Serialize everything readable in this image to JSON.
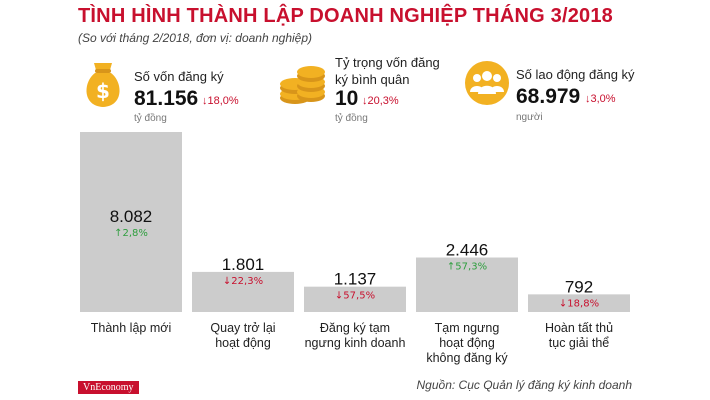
{
  "title": "TÌNH HÌNH THÀNH LẬP DOANH NGHIỆP THÁNG 3/2018",
  "subtitle": "(So với tháng 2/2018, đơn vị: doanh nghiệp)",
  "kpis": [
    {
      "label": "Số vốn đăng ký",
      "value": "81.156",
      "change": "18,0%",
      "direction": "down",
      "unit": "tỷ đồng",
      "icon": "money-bag-icon"
    },
    {
      "label1": "Tỷ trọng vốn đăng",
      "label2": "ký bình quân",
      "value": "10",
      "change": "20,3%",
      "direction": "down",
      "unit": "tỷ đồng",
      "icon": "coin-stack-icon"
    },
    {
      "label": "Số lao động đăng ký",
      "value": "68.979",
      "change": "3,0%",
      "direction": "down",
      "unit": "người",
      "icon": "people-icon"
    }
  ],
  "colors": {
    "bar": "#cccccc",
    "up": "#2e9e3e",
    "down": "#c8102e",
    "accent": "#c8102e",
    "icon_gold": "#f2b122"
  },
  "chart_data": {
    "type": "bar",
    "categories": [
      [
        "Thành lập mới"
      ],
      [
        "Quay trở lại",
        "hoạt động"
      ],
      [
        "Đăng ký tạm",
        "ngưng kinh doanh"
      ],
      [
        "Tạm ngưng",
        "hoạt động",
        "không đăng ký"
      ],
      [
        "Hoàn tất thủ",
        "tục giải thể"
      ]
    ],
    "values": [
      8082,
      1801,
      1137,
      2446,
      792
    ],
    "value_labels": [
      "8.082",
      "1.801",
      "1.137",
      "2.446",
      "792"
    ],
    "changes": [
      "2,8%",
      "22,3%",
      "57,5%",
      "57,3%",
      "18,8%"
    ],
    "directions": [
      "up",
      "down",
      "down",
      "up",
      "down"
    ],
    "ylim": [
      0,
      8082
    ]
  },
  "source": "Nguồn: Cục Quản lý đăng ký kinh doanh",
  "logo": "VnEconomy"
}
